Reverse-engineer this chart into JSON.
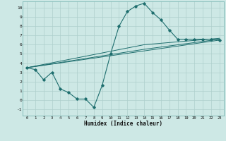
{
  "xlabel": "Humidex (Indice chaleur)",
  "ylabel": "",
  "bg_color": "#cde8e5",
  "grid_color": "#aecfcc",
  "line_color": "#1e6e6e",
  "xlim": [
    -0.5,
    23.5
  ],
  "ylim": [
    -1.7,
    10.7
  ],
  "xticks": [
    0,
    1,
    2,
    3,
    4,
    5,
    6,
    7,
    8,
    9,
    10,
    11,
    12,
    13,
    14,
    15,
    16,
    17,
    18,
    19,
    20,
    21,
    22,
    23
  ],
  "yticks": [
    -1,
    0,
    1,
    2,
    3,
    4,
    5,
    6,
    7,
    8,
    9,
    10
  ],
  "line1_x": [
    0,
    1,
    2,
    3,
    4,
    5,
    6,
    7,
    8,
    9,
    10,
    11,
    12,
    13,
    14,
    15,
    16,
    17,
    18,
    19,
    20,
    21,
    22,
    23
  ],
  "line1_y": [
    3.5,
    3.3,
    2.2,
    3.0,
    1.2,
    0.8,
    0.1,
    0.1,
    -0.8,
    1.6,
    5.0,
    8.0,
    9.6,
    10.2,
    10.5,
    9.5,
    8.7,
    7.6,
    6.6,
    6.6,
    6.6,
    6.6,
    6.6,
    6.5
  ],
  "line2_x": [
    0,
    23
  ],
  "line2_y": [
    3.5,
    6.5
  ],
  "line3_x": [
    0,
    14,
    23
  ],
  "line3_y": [
    3.5,
    5.5,
    6.6
  ],
  "line4_x": [
    0,
    14,
    23
  ],
  "line4_y": [
    3.5,
    6.0,
    6.7
  ]
}
